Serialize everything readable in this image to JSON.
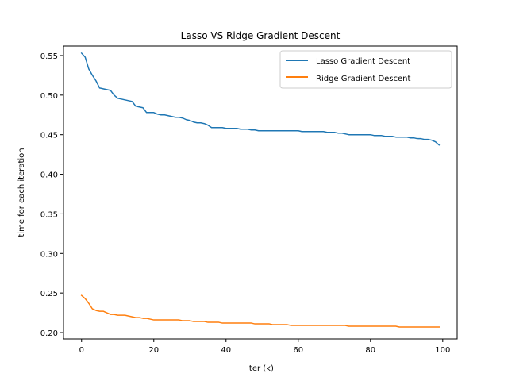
{
  "chart_data": {
    "type": "line",
    "title": "Lasso VS Ridge Gradient Descent",
    "xlabel": "iter (k)",
    "ylabel": "time for each iteration",
    "xlim": [
      -5,
      104
    ],
    "ylim": [
      0.192,
      0.562
    ],
    "xticks": [
      0,
      20,
      40,
      60,
      80,
      100
    ],
    "xtick_labels": [
      "0",
      "20",
      "40",
      "60",
      "80",
      "100"
    ],
    "yticks": [
      0.2,
      0.25,
      0.3,
      0.35,
      0.4,
      0.45,
      0.5,
      0.55
    ],
    "ytick_labels": [
      "0.20",
      "0.25",
      "0.30",
      "0.35",
      "0.40",
      "0.45",
      "0.50",
      "0.55"
    ],
    "grid": false,
    "legend_position": "top-right",
    "colors": {
      "series_0": "#1f77b4",
      "series_1": "#ff7f0e"
    },
    "series": [
      {
        "name": "Lasso Gradient Descent",
        "x": [
          0,
          1,
          2,
          3,
          4,
          5,
          6,
          7,
          8,
          9,
          10,
          11,
          12,
          13,
          14,
          15,
          16,
          17,
          18,
          19,
          20,
          21,
          22,
          23,
          24,
          25,
          26,
          27,
          28,
          29,
          30,
          31,
          32,
          33,
          34,
          35,
          36,
          37,
          38,
          39,
          40,
          41,
          42,
          43,
          44,
          45,
          46,
          47,
          48,
          49,
          50,
          51,
          52,
          53,
          54,
          55,
          56,
          57,
          58,
          59,
          60,
          61,
          62,
          63,
          64,
          65,
          66,
          67,
          68,
          69,
          70,
          71,
          72,
          73,
          74,
          75,
          76,
          77,
          78,
          79,
          80,
          81,
          82,
          83,
          84,
          85,
          86,
          87,
          88,
          89,
          90,
          91,
          92,
          93,
          94,
          95,
          96,
          97,
          98,
          99
        ],
        "values": [
          0.553,
          0.548,
          0.533,
          0.525,
          0.518,
          0.509,
          0.508,
          0.507,
          0.506,
          0.5,
          0.496,
          0.495,
          0.494,
          0.493,
          0.492,
          0.486,
          0.485,
          0.484,
          0.478,
          0.478,
          0.478,
          0.476,
          0.475,
          0.475,
          0.474,
          0.473,
          0.472,
          0.472,
          0.471,
          0.469,
          0.468,
          0.466,
          0.465,
          0.465,
          0.464,
          0.462,
          0.459,
          0.459,
          0.459,
          0.459,
          0.458,
          0.458,
          0.458,
          0.458,
          0.457,
          0.457,
          0.457,
          0.456,
          0.456,
          0.455,
          0.455,
          0.455,
          0.455,
          0.455,
          0.455,
          0.455,
          0.455,
          0.455,
          0.455,
          0.455,
          0.455,
          0.454,
          0.454,
          0.454,
          0.454,
          0.454,
          0.454,
          0.454,
          0.453,
          0.453,
          0.453,
          0.452,
          0.452,
          0.451,
          0.45,
          0.45,
          0.45,
          0.45,
          0.45,
          0.45,
          0.45,
          0.449,
          0.449,
          0.449,
          0.448,
          0.448,
          0.448,
          0.447,
          0.447,
          0.447,
          0.447,
          0.446,
          0.446,
          0.445,
          0.445,
          0.444,
          0.444,
          0.443,
          0.441,
          0.437
        ]
      },
      {
        "name": "Ridge Gradient Descent",
        "x": [
          0,
          1,
          2,
          3,
          4,
          5,
          6,
          7,
          8,
          9,
          10,
          11,
          12,
          13,
          14,
          15,
          16,
          17,
          18,
          19,
          20,
          21,
          22,
          23,
          24,
          25,
          26,
          27,
          28,
          29,
          30,
          31,
          32,
          33,
          34,
          35,
          36,
          37,
          38,
          39,
          40,
          41,
          42,
          43,
          44,
          45,
          46,
          47,
          48,
          49,
          50,
          51,
          52,
          53,
          54,
          55,
          56,
          57,
          58,
          59,
          60,
          61,
          62,
          63,
          64,
          65,
          66,
          67,
          68,
          69,
          70,
          71,
          72,
          73,
          74,
          75,
          76,
          77,
          78,
          79,
          80,
          81,
          82,
          83,
          84,
          85,
          86,
          87,
          88,
          89,
          90,
          91,
          92,
          93,
          94,
          95,
          96,
          97,
          98,
          99
        ],
        "values": [
          0.247,
          0.243,
          0.237,
          0.23,
          0.228,
          0.227,
          0.227,
          0.225,
          0.223,
          0.223,
          0.222,
          0.222,
          0.222,
          0.221,
          0.22,
          0.219,
          0.219,
          0.218,
          0.218,
          0.217,
          0.216,
          0.216,
          0.216,
          0.216,
          0.216,
          0.216,
          0.216,
          0.216,
          0.215,
          0.215,
          0.215,
          0.214,
          0.214,
          0.214,
          0.214,
          0.213,
          0.213,
          0.213,
          0.213,
          0.212,
          0.212,
          0.212,
          0.212,
          0.212,
          0.212,
          0.212,
          0.212,
          0.212,
          0.211,
          0.211,
          0.211,
          0.211,
          0.211,
          0.21,
          0.21,
          0.21,
          0.21,
          0.21,
          0.209,
          0.209,
          0.209,
          0.209,
          0.209,
          0.209,
          0.209,
          0.209,
          0.209,
          0.209,
          0.209,
          0.209,
          0.209,
          0.209,
          0.209,
          0.209,
          0.208,
          0.208,
          0.208,
          0.208,
          0.208,
          0.208,
          0.208,
          0.208,
          0.208,
          0.208,
          0.208,
          0.208,
          0.208,
          0.208,
          0.207,
          0.207,
          0.207,
          0.207,
          0.207,
          0.207,
          0.207,
          0.207,
          0.207,
          0.207,
          0.207,
          0.207
        ]
      }
    ]
  }
}
